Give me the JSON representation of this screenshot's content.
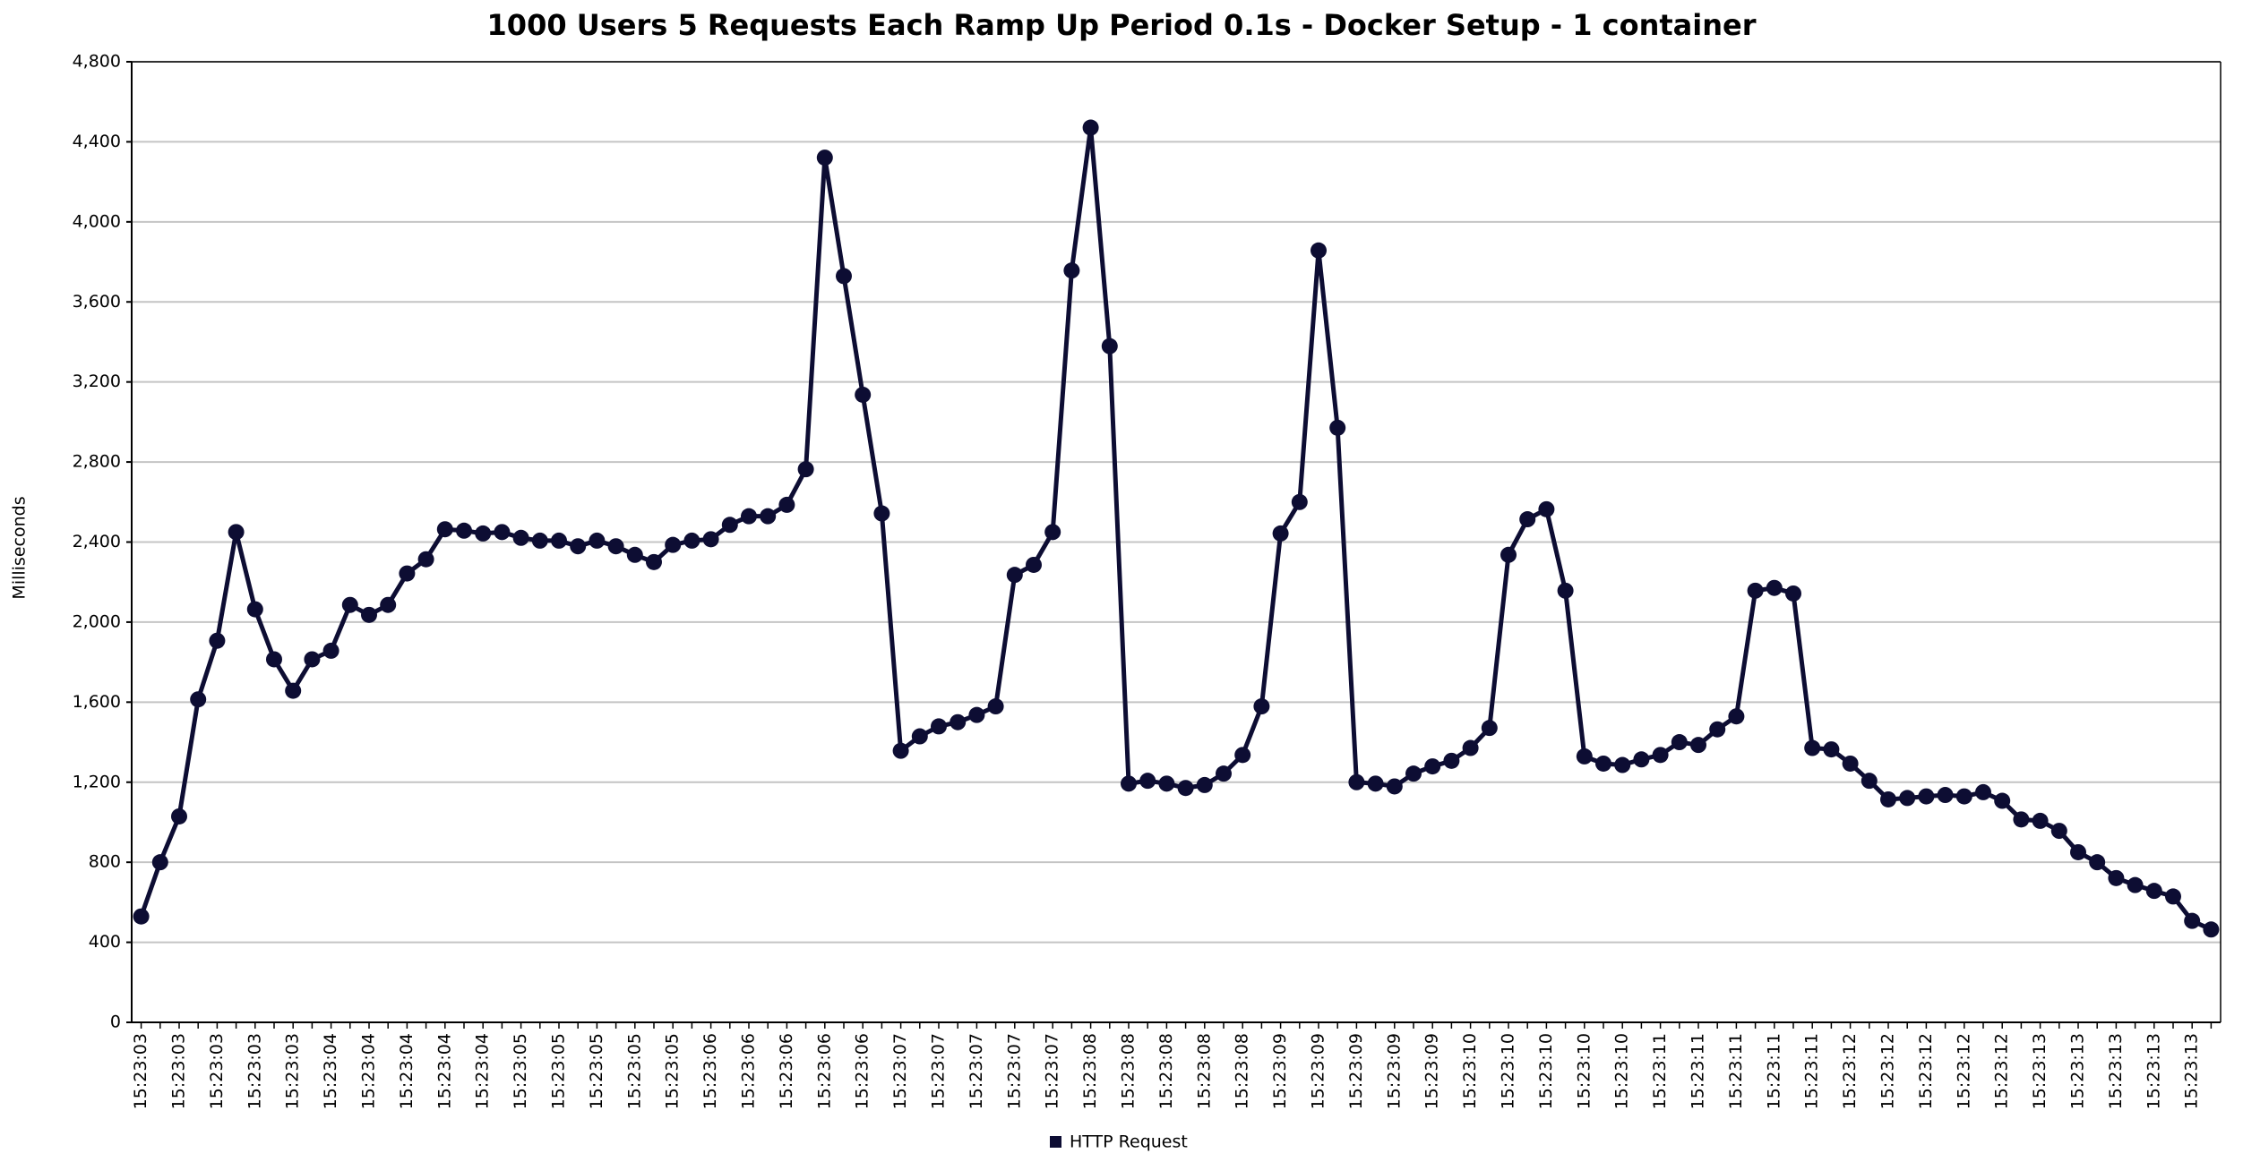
{
  "chart_data": {
    "type": "line",
    "title": "1000 Users 5 Requests Each Ramp Up Period 0.1s - Docker Setup - 1 container",
    "y_label": "Milliseconds",
    "categories": [
      "15:23:03",
      null,
      "15:23:03",
      null,
      "15:23:03",
      null,
      "15:23:03",
      null,
      "15:23:03",
      null,
      "15:23:04",
      null,
      "15:23:04",
      null,
      "15:23:04",
      null,
      "15:23:04",
      null,
      "15:23:04",
      null,
      "15:23:05",
      null,
      "15:23:05",
      null,
      "15:23:05",
      null,
      "15:23:05",
      null,
      "15:23:05",
      null,
      "15:23:06",
      null,
      "15:23:06",
      null,
      "15:23:06",
      null,
      "15:23:06",
      null,
      "15:23:06",
      null,
      "15:23:07",
      null,
      "15:23:07",
      null,
      "15:23:07",
      null,
      "15:23:07",
      null,
      "15:23:07",
      null,
      "15:23:08",
      null,
      "15:23:08",
      null,
      "15:23:08",
      null,
      "15:23:08",
      null,
      "15:23:08",
      null,
      "15:23:09",
      null,
      "15:23:09",
      null,
      "15:23:09",
      null,
      "15:23:09",
      null,
      "15:23:09",
      null,
      "15:23:10",
      null,
      "15:23:10",
      null,
      "15:23:10",
      null,
      "15:23:10",
      null,
      "15:23:10",
      null,
      "15:23:11",
      null,
      "15:23:11",
      null,
      "15:23:11",
      null,
      "15:23:11",
      null,
      "15:23:11",
      null,
      "15:23:12",
      null,
      "15:23:12",
      null,
      "15:23:12",
      null,
      "15:23:12",
      null,
      "15:23:12",
      null,
      "15:23:13",
      null,
      "15:23:13",
      null,
      "15:23:13",
      null,
      "15:23:13",
      null,
      "15:23:13",
      null
    ],
    "series": [
      {
        "name": "HTTP Request",
        "color": "#0d0d33",
        "values": [
          529,
          800,
          1029,
          1614,
          1907,
          2450,
          2064,
          1814,
          1657,
          1814,
          1857,
          2086,
          2036,
          2086,
          2243,
          2314,
          2464,
          2457,
          2443,
          2450,
          2421,
          2407,
          2407,
          2379,
          2407,
          2379,
          2336,
          2300,
          2386,
          2407,
          2414,
          2486,
          2529,
          2529,
          2586,
          2764,
          4321,
          3729,
          3136,
          2543,
          1357,
          1429,
          1479,
          1500,
          1536,
          1579,
          2236,
          2286,
          2450,
          3757,
          4471,
          3379,
          1193,
          1207,
          1193,
          1171,
          1186,
          1243,
          1336,
          1579,
          2443,
          2600,
          3857,
          2971,
          1200,
          1193,
          1179,
          1243,
          1279,
          1307,
          1371,
          1471,
          2336,
          2514,
          2564,
          2157,
          1329,
          1293,
          1286,
          1314,
          1336,
          1400,
          1386,
          1464,
          1529,
          2157,
          2171,
          2143,
          1371,
          1364,
          1293,
          1207,
          1114,
          1121,
          1129,
          1136,
          1129,
          1150,
          1107,
          1014,
          1007,
          957,
          850,
          800,
          721,
          686,
          657,
          629,
          507,
          464
        ]
      }
    ],
    "ylim": [
      0,
      4800
    ],
    "yticks": [
      0,
      400,
      800,
      {
        "value": 1200,
        "label": "1,200"
      },
      {
        "value": 1600,
        "label": "1,600"
      },
      {
        "value": 2000,
        "label": "2,000"
      },
      {
        "value": 2400,
        "label": "2,400"
      },
      {
        "value": 2800,
        "label": "2,800"
      },
      {
        "value": 3200,
        "label": "3,200"
      },
      {
        "value": 3600,
        "label": "3,600"
      },
      {
        "value": 4000,
        "label": "4,000"
      },
      {
        "value": 4400,
        "label": "4,400"
      },
      {
        "value": 4800,
        "label": "4,800"
      }
    ],
    "grid": true,
    "legend": "bottom"
  }
}
